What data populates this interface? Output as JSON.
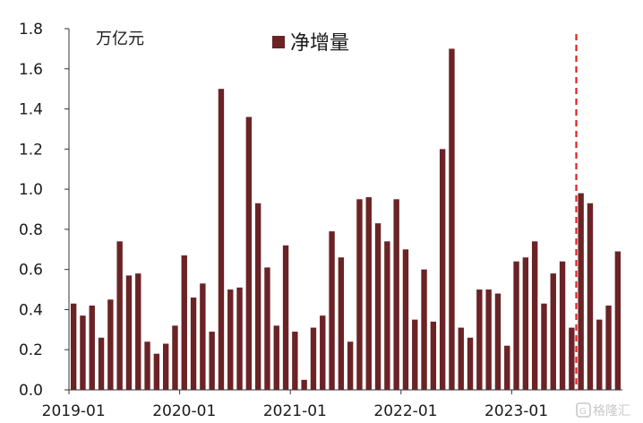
{
  "chart_data": {
    "type": "bar",
    "title": "",
    "unit_label": "万亿元",
    "xlabel": "",
    "ylabel": "",
    "ylim": [
      0,
      1.8
    ],
    "yticks": [
      "0.0",
      "0.2",
      "0.4",
      "0.6",
      "0.8",
      "1.0",
      "1.2",
      "1.4",
      "1.6",
      "1.8"
    ],
    "x_ticks": [
      "2019-01",
      "2020-01",
      "2021-01",
      "2022-01",
      "2023-01"
    ],
    "start_month": "2019-01",
    "legend_position": "top-center",
    "grid": false,
    "series": [
      {
        "name": "净增量",
        "color": "#6b2326",
        "values": [
          0.43,
          0.37,
          0.42,
          0.26,
          0.45,
          0.74,
          0.57,
          0.58,
          0.24,
          0.18,
          0.23,
          0.32,
          0.67,
          0.46,
          0.53,
          0.29,
          1.5,
          0.5,
          0.51,
          1.36,
          0.93,
          0.61,
          0.32,
          0.72,
          0.29,
          0.05,
          0.31,
          0.37,
          0.79,
          0.66,
          0.24,
          0.95,
          0.96,
          0.83,
          0.74,
          0.95,
          0.7,
          0.35,
          0.6,
          0.34,
          1.2,
          1.7,
          0.31,
          0.26,
          0.5,
          0.5,
          0.48,
          0.22,
          0.64,
          0.66,
          0.74,
          0.43,
          0.58,
          0.64,
          0.31,
          0.98,
          0.93,
          0.35,
          0.42,
          0.69
        ]
      }
    ],
    "annotations": [
      {
        "type": "vertical-dashed-line",
        "color": "#e02020",
        "before_month": "2023-08"
      }
    ]
  },
  "watermark": {
    "text": "格隆汇",
    "icon": "glh-logo-icon"
  }
}
